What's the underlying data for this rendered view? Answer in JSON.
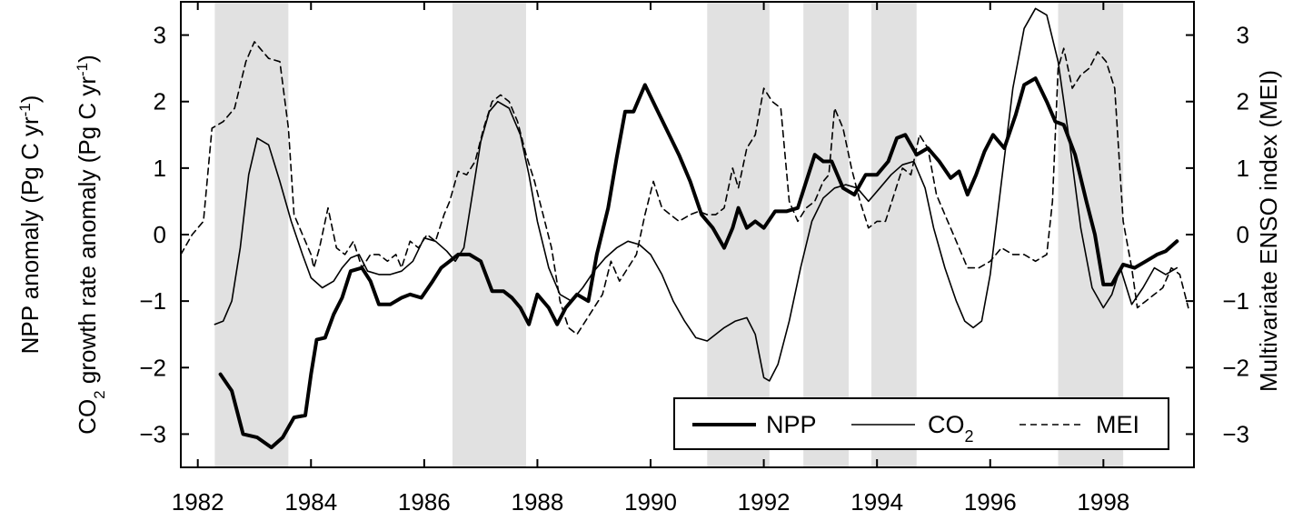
{
  "chart_data": {
    "type": "line",
    "xlim": [
      1981.7,
      1999.6
    ],
    "x_ticks": [
      1982,
      1984,
      1986,
      1988,
      1990,
      1992,
      1994,
      1996,
      1998
    ],
    "x_tick_labels": [
      "1982",
      "1984",
      "1986",
      "1988",
      "1990",
      "1992",
      "1994",
      "1996",
      "1998"
    ],
    "left_axis": {
      "ylim": [
        -3.5,
        3.5
      ],
      "ticks": [
        -3,
        -2,
        -1,
        0,
        1,
        2,
        3
      ],
      "tick_labels": [
        "−3",
        "−2",
        "−1",
        "0",
        "1",
        "2",
        "3"
      ],
      "label_line1": "NPP anomaly (Pg C yr",
      "label_line1_sup": "-1",
      "label_line1_end": ")",
      "label_line2_a": "CO",
      "label_line2_sub": "2",
      "label_line2_b": " growth rate anomaly (Pg C yr",
      "label_line2_sup": "-1",
      "label_line2_end": ")"
    },
    "right_axis": {
      "ylim": [
        -3.5,
        3.5
      ],
      "ticks": [
        -3,
        -2,
        -1,
        0,
        1,
        2,
        3
      ],
      "tick_labels": [
        "−3",
        "−2",
        "−1",
        "0",
        "1",
        "2",
        "3"
      ],
      "label": "Multivariate ENSO index (MEI)"
    },
    "shaded_periods": [
      [
        1982.3,
        1983.6
      ],
      [
        1986.5,
        1987.8
      ],
      [
        1991.0,
        1992.1
      ],
      [
        1992.7,
        1993.5
      ],
      [
        1993.9,
        1994.7
      ],
      [
        1997.2,
        1998.35
      ]
    ],
    "legend": {
      "position": "bottom-right",
      "entries": [
        {
          "label": "NPP",
          "style": "thick-solid"
        },
        {
          "label": "CO",
          "sub": "2",
          "style": "thin-solid"
        },
        {
          "label": "MEI",
          "style": "dashed"
        }
      ]
    },
    "series": [
      {
        "name": "NPP",
        "style": "thick-solid",
        "x": [
          1982.4,
          1982.6,
          1982.8,
          1983.05,
          1983.3,
          1983.5,
          1983.7,
          1983.9,
          1984.0,
          1984.1,
          1984.25,
          1984.4,
          1984.55,
          1984.7,
          1984.9,
          1985.05,
          1985.2,
          1985.4,
          1985.6,
          1985.75,
          1985.95,
          1986.15,
          1986.3,
          1986.45,
          1986.6,
          1986.8,
          1987.0,
          1987.2,
          1987.4,
          1987.55,
          1987.7,
          1987.85,
          1988.0,
          1988.2,
          1988.35,
          1988.5,
          1988.7,
          1988.9,
          1989.05,
          1989.25,
          1989.4,
          1989.55,
          1989.7,
          1989.9,
          1990.1,
          1990.3,
          1990.5,
          1990.7,
          1990.9,
          1991.1,
          1991.3,
          1991.45,
          1991.55,
          1991.7,
          1991.85,
          1992.0,
          1992.2,
          1992.4,
          1992.6,
          1992.75,
          1992.9,
          1993.05,
          1993.2,
          1993.4,
          1993.6,
          1993.8,
          1994.0,
          1994.2,
          1994.35,
          1994.5,
          1994.7,
          1994.9,
          1995.1,
          1995.3,
          1995.45,
          1995.6,
          1995.75,
          1995.9,
          1996.05,
          1996.25,
          1996.45,
          1996.6,
          1996.8,
          1997.0,
          1997.15,
          1997.3,
          1997.5,
          1997.7,
          1997.85,
          1998.0,
          1998.15,
          1998.35,
          1998.55,
          1998.75,
          1998.95,
          1999.1,
          1999.3
        ],
        "y": [
          -2.1,
          -2.35,
          -3.0,
          -3.05,
          -3.2,
          -3.05,
          -2.75,
          -2.72,
          -2.1,
          -1.58,
          -1.55,
          -1.2,
          -0.95,
          -0.55,
          -0.5,
          -0.7,
          -1.05,
          -1.05,
          -0.95,
          -0.9,
          -0.95,
          -0.7,
          -0.5,
          -0.4,
          -0.3,
          -0.3,
          -0.4,
          -0.85,
          -0.85,
          -0.95,
          -1.1,
          -1.35,
          -0.9,
          -1.1,
          -1.35,
          -1.1,
          -0.9,
          -1.0,
          -0.3,
          0.4,
          1.15,
          1.85,
          1.85,
          2.25,
          1.9,
          1.55,
          1.2,
          0.8,
          0.3,
          0.1,
          -0.2,
          0.1,
          0.4,
          0.1,
          0.2,
          0.1,
          0.35,
          0.35,
          0.4,
          0.8,
          1.2,
          1.1,
          1.1,
          0.7,
          0.6,
          0.9,
          0.9,
          1.1,
          1.45,
          1.5,
          1.2,
          1.3,
          1.1,
          0.85,
          0.95,
          0.6,
          0.9,
          1.25,
          1.5,
          1.3,
          1.8,
          2.25,
          2.35,
          2.0,
          1.7,
          1.65,
          1.2,
          0.5,
          0.0,
          -0.75,
          -0.75,
          -0.45,
          -0.5,
          -0.4,
          -0.3,
          -0.25,
          -0.1
        ]
      },
      {
        "name": "CO2",
        "style": "thin-solid",
        "x": [
          1982.3,
          1982.45,
          1982.6,
          1982.75,
          1982.9,
          1983.05,
          1983.25,
          1983.45,
          1983.65,
          1983.85,
          1984.0,
          1984.2,
          1984.4,
          1984.55,
          1984.7,
          1984.85,
          1985.0,
          1985.2,
          1985.4,
          1985.6,
          1985.8,
          1986.0,
          1986.2,
          1986.4,
          1986.55,
          1986.7,
          1986.85,
          1987.0,
          1987.15,
          1987.3,
          1987.5,
          1987.7,
          1987.85,
          1988.0,
          1988.2,
          1988.4,
          1988.6,
          1988.8,
          1989.0,
          1989.2,
          1989.4,
          1989.6,
          1989.8,
          1990.0,
          1990.2,
          1990.4,
          1990.6,
          1990.8,
          1991.0,
          1991.15,
          1991.3,
          1991.5,
          1991.7,
          1991.85,
          1992.0,
          1992.1,
          1992.25,
          1992.45,
          1992.65,
          1992.85,
          1993.05,
          1993.25,
          1993.45,
          1993.65,
          1993.85,
          1994.05,
          1994.25,
          1994.45,
          1994.65,
          1994.85,
          1995.0,
          1995.2,
          1995.4,
          1995.55,
          1995.7,
          1995.85,
          1996.0,
          1996.2,
          1996.4,
          1996.6,
          1996.8,
          1997.0,
          1997.2,
          1997.4,
          1997.6,
          1997.8,
          1998.0,
          1998.15,
          1998.3,
          1998.5,
          1998.7,
          1998.9,
          1999.1,
          1999.3
        ],
        "y": [
          -1.35,
          -1.3,
          -1.0,
          -0.2,
          0.9,
          1.45,
          1.35,
          0.8,
          0.2,
          -0.3,
          -0.65,
          -0.8,
          -0.7,
          -0.5,
          -0.35,
          -0.3,
          -0.55,
          -0.6,
          -0.6,
          -0.55,
          -0.4,
          -0.05,
          -0.1,
          -0.25,
          -0.4,
          -0.2,
          0.6,
          1.4,
          1.85,
          2.0,
          1.9,
          1.5,
          0.9,
          0.2,
          -0.5,
          -0.9,
          -1.0,
          -0.8,
          -0.55,
          -0.35,
          -0.2,
          -0.1,
          -0.15,
          -0.3,
          -0.6,
          -1.0,
          -1.3,
          -1.55,
          -1.6,
          -1.5,
          -1.4,
          -1.3,
          -1.25,
          -1.5,
          -2.15,
          -2.2,
          -1.95,
          -1.3,
          -0.5,
          0.2,
          0.55,
          0.7,
          0.75,
          0.7,
          0.5,
          0.7,
          0.9,
          1.05,
          1.1,
          0.7,
          0.1,
          -0.5,
          -1.0,
          -1.3,
          -1.4,
          -1.3,
          -0.6,
          0.8,
          2.2,
          3.1,
          3.4,
          3.3,
          2.6,
          1.4,
          0.1,
          -0.8,
          -1.1,
          -0.9,
          -0.5,
          -1.05,
          -0.8,
          -0.5,
          -0.6,
          -0.5
        ]
      },
      {
        "name": "MEI",
        "style": "dashed",
        "x": [
          1981.7,
          1981.9,
          1982.1,
          1982.25,
          1982.45,
          1982.65,
          1982.85,
          1983.0,
          1983.1,
          1983.25,
          1983.45,
          1983.6,
          1983.7,
          1983.85,
          1984.0,
          1984.05,
          1984.15,
          1984.3,
          1984.45,
          1984.6,
          1984.75,
          1984.9,
          1985.05,
          1985.2,
          1985.35,
          1985.5,
          1985.6,
          1985.75,
          1985.9,
          1986.05,
          1986.2,
          1986.35,
          1986.45,
          1986.6,
          1986.75,
          1986.9,
          1987.05,
          1987.2,
          1987.35,
          1987.5,
          1987.65,
          1987.8,
          1987.95,
          1988.1,
          1988.25,
          1988.4,
          1988.55,
          1988.7,
          1988.85,
          1989.0,
          1989.15,
          1989.3,
          1989.45,
          1989.6,
          1989.75,
          1989.9,
          1990.05,
          1990.2,
          1990.35,
          1990.5,
          1990.7,
          1990.85,
          1991.0,
          1991.15,
          1991.3,
          1991.45,
          1991.55,
          1991.7,
          1991.85,
          1992.0,
          1992.15,
          1992.3,
          1992.45,
          1992.6,
          1992.75,
          1992.9,
          1993.05,
          1993.15,
          1993.25,
          1993.4,
          1993.55,
          1993.7,
          1993.85,
          1994.0,
          1994.15,
          1994.3,
          1994.45,
          1994.6,
          1994.75,
          1994.9,
          1995.05,
          1995.2,
          1995.4,
          1995.6,
          1995.8,
          1996.0,
          1996.2,
          1996.4,
          1996.6,
          1996.8,
          1997.0,
          1997.1,
          1997.2,
          1997.3,
          1997.45,
          1997.6,
          1997.75,
          1997.9,
          1998.05,
          1998.2,
          1998.35,
          1998.5,
          1998.6,
          1998.75,
          1998.9,
          1999.05,
          1999.2,
          1999.35,
          1999.5
        ],
        "y": [
          -0.3,
          0.0,
          0.2,
          1.6,
          1.7,
          1.9,
          2.6,
          2.9,
          2.8,
          2.65,
          2.6,
          1.6,
          0.3,
          0.0,
          -0.3,
          -0.5,
          -0.2,
          0.4,
          -0.2,
          -0.3,
          -0.1,
          -0.5,
          -0.3,
          -0.3,
          -0.4,
          -0.3,
          -0.5,
          -0.1,
          -0.2,
          0.0,
          -0.1,
          0.3,
          0.5,
          0.95,
          0.9,
          1.1,
          1.6,
          2.0,
          2.1,
          2.0,
          1.7,
          1.2,
          0.8,
          0.3,
          -0.2,
          -1.0,
          -1.4,
          -1.5,
          -1.3,
          -1.1,
          -0.9,
          -0.4,
          -0.7,
          -0.5,
          -0.3,
          0.3,
          0.8,
          0.4,
          0.3,
          0.2,
          0.3,
          0.35,
          0.3,
          0.3,
          0.4,
          1.0,
          0.7,
          1.3,
          1.5,
          2.2,
          2.0,
          1.9,
          0.5,
          0.2,
          0.4,
          0.5,
          0.8,
          0.9,
          1.9,
          1.6,
          1.0,
          0.5,
          0.1,
          0.2,
          0.2,
          0.6,
          1.0,
          0.9,
          1.5,
          1.3,
          0.6,
          0.3,
          -0.1,
          -0.5,
          -0.5,
          -0.4,
          -0.2,
          -0.3,
          -0.3,
          -0.4,
          -0.3,
          0.5,
          2.5,
          2.8,
          2.2,
          2.4,
          2.5,
          2.75,
          2.6,
          2.2,
          0.2,
          -0.5,
          -1.1,
          -1.0,
          -0.9,
          -0.8,
          -0.5,
          -0.6,
          -1.1
        ]
      }
    ]
  }
}
